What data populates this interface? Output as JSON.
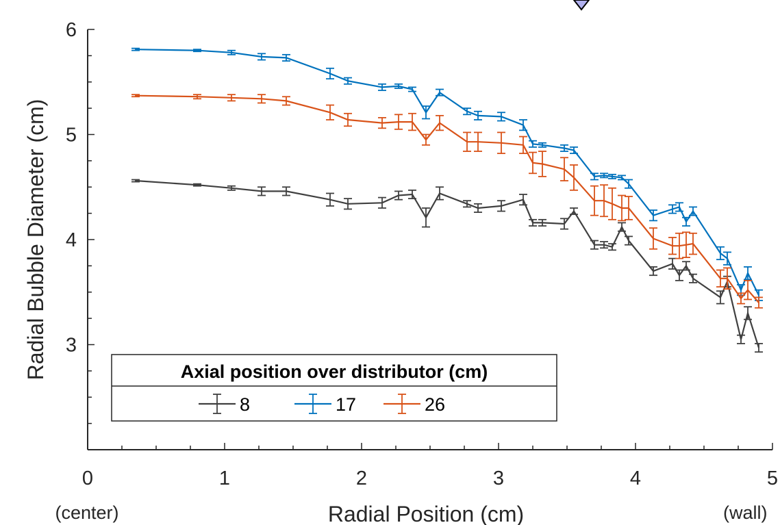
{
  "chart_data": {
    "type": "line",
    "title": "",
    "xlabel": "Radial Position (cm)",
    "ylabel": "Radial Bubble Diameter (cm)",
    "xlim": [
      0,
      5
    ],
    "ylim": [
      2,
      6
    ],
    "xticks": [
      0,
      1,
      2,
      3,
      4,
      5
    ],
    "yticks": [
      3,
      4,
      5,
      6
    ],
    "x_tick_labels": [
      "0",
      "1",
      "2",
      "3",
      "4",
      "5"
    ],
    "y_tick_labels": [
      "3",
      "4",
      "5",
      "6"
    ],
    "grid": false,
    "error_bars": true,
    "legend_title": "Axial position over distributor (cm)",
    "legend_position": "bottom-left",
    "annotations": {
      "left": "(center)",
      "right": "(wall)"
    },
    "x": [
      0.35,
      0.8,
      1.05,
      1.27,
      1.45,
      1.77,
      1.9,
      2.15,
      2.27,
      2.37,
      2.47,
      2.57,
      2.77,
      2.85,
      3.02,
      3.18,
      3.25,
      3.32,
      3.48,
      3.55,
      3.7,
      3.77,
      3.83,
      3.9,
      3.95,
      4.13,
      4.27,
      4.32,
      4.37,
      4.42,
      4.62,
      4.67,
      4.77,
      4.82,
      4.9
    ],
    "series": [
      {
        "name": "8",
        "color": "#404040",
        "values": [
          4.56,
          4.52,
          4.49,
          4.46,
          4.46,
          4.38,
          4.34,
          4.35,
          4.42,
          4.43,
          4.21,
          4.44,
          4.34,
          4.3,
          4.32,
          4.38,
          4.16,
          4.16,
          4.15,
          4.27,
          3.95,
          3.95,
          3.93,
          4.12,
          3.99,
          3.7,
          3.77,
          3.66,
          3.75,
          3.63,
          3.45,
          3.6,
          3.05,
          3.3,
          2.97
        ],
        "errors": [
          0.01,
          0.01,
          0.02,
          0.04,
          0.04,
          0.06,
          0.05,
          0.05,
          0.04,
          0.04,
          0.09,
          0.06,
          0.03,
          0.04,
          0.05,
          0.05,
          0.03,
          0.03,
          0.05,
          0.03,
          0.04,
          0.03,
          0.03,
          0.04,
          0.04,
          0.04,
          0.05,
          0.05,
          0.04,
          0.04,
          0.06,
          0.05,
          0.04,
          0.06,
          0.04
        ]
      },
      {
        "name": "17",
        "color": "#0072BD",
        "values": [
          5.81,
          5.8,
          5.78,
          5.74,
          5.73,
          5.58,
          5.51,
          5.45,
          5.46,
          5.43,
          5.21,
          5.4,
          5.22,
          5.18,
          5.17,
          5.09,
          4.91,
          4.9,
          4.87,
          4.85,
          4.6,
          4.61,
          4.6,
          4.59,
          4.53,
          4.23,
          4.29,
          4.31,
          4.17,
          4.27,
          3.87,
          3.82,
          3.52,
          3.68,
          3.47
        ],
        "errors": [
          0.01,
          0.01,
          0.02,
          0.03,
          0.03,
          0.05,
          0.03,
          0.03,
          0.02,
          0.02,
          0.06,
          0.03,
          0.03,
          0.04,
          0.04,
          0.05,
          0.03,
          0.02,
          0.03,
          0.03,
          0.03,
          0.02,
          0.02,
          0.02,
          0.04,
          0.05,
          0.04,
          0.04,
          0.04,
          0.04,
          0.06,
          0.06,
          0.05,
          0.06,
          0.05
        ]
      },
      {
        "name": "26",
        "color": "#D95319",
        "values": [
          5.37,
          5.36,
          5.35,
          5.34,
          5.32,
          5.21,
          5.14,
          5.11,
          5.12,
          5.12,
          4.95,
          5.11,
          4.93,
          4.93,
          4.92,
          4.9,
          4.73,
          4.72,
          4.67,
          4.59,
          4.37,
          4.37,
          4.34,
          4.3,
          4.3,
          4.01,
          3.94,
          3.94,
          3.95,
          3.96,
          3.63,
          3.63,
          3.44,
          3.52,
          3.4
        ],
        "errors": [
          0.01,
          0.02,
          0.03,
          0.04,
          0.04,
          0.07,
          0.06,
          0.05,
          0.07,
          0.08,
          0.05,
          0.07,
          0.09,
          0.09,
          0.1,
          0.08,
          0.1,
          0.12,
          0.11,
          0.12,
          0.14,
          0.15,
          0.15,
          0.12,
          0.11,
          0.1,
          0.08,
          0.12,
          0.12,
          0.1,
          0.08,
          0.1,
          0.05,
          0.09,
          0.05
        ]
      }
    ]
  }
}
